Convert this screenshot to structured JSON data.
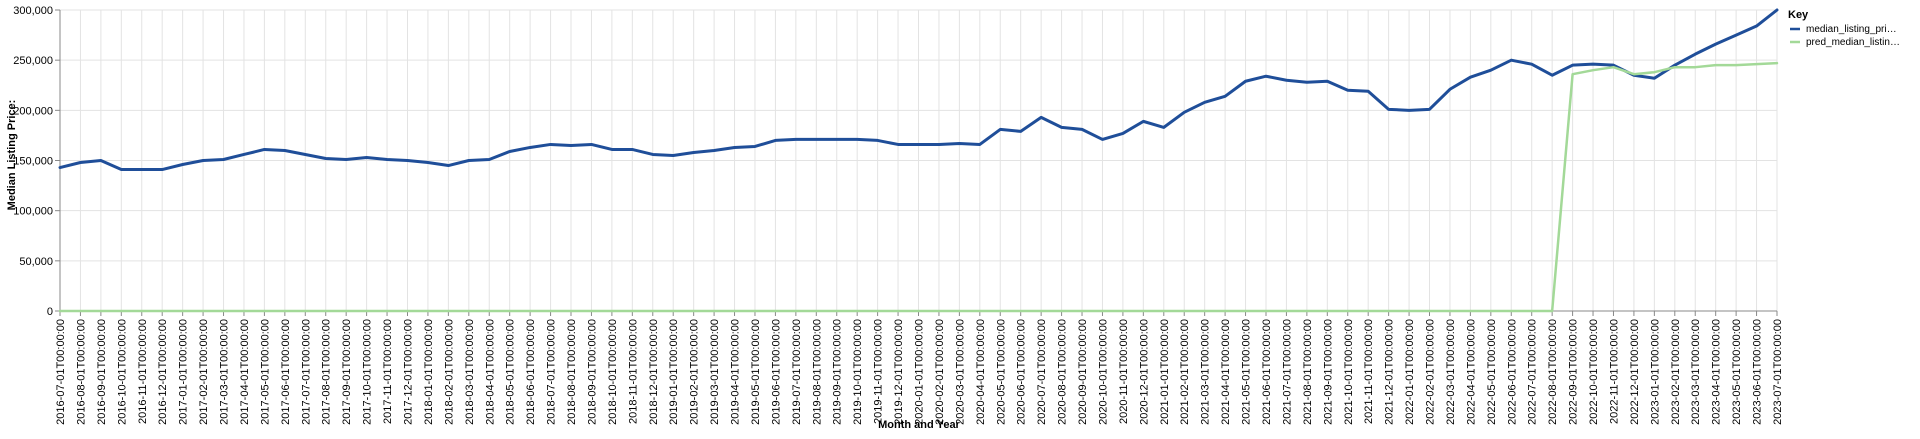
{
  "chart_data": {
    "type": "line",
    "xlabel": "Month and Year",
    "ylabel": "Median Listing Price:",
    "ylim": [
      0,
      300000
    ],
    "y_ticks": [
      "0",
      "50,000",
      "100,000",
      "150,000",
      "200,000",
      "250,000",
      "300,000"
    ],
    "grid": true,
    "legend": {
      "title": "Key",
      "placement": "right"
    },
    "x": [
      "2016-07-01T00:00:00",
      "2016-08-01T00:00:00",
      "2016-09-01T00:00:00",
      "2016-10-01T00:00:00",
      "2016-11-01T00:00:00",
      "2016-12-01T00:00:00",
      "2017-01-01T00:00:00",
      "2017-02-01T00:00:00",
      "2017-03-01T00:00:00",
      "2017-04-01T00:00:00",
      "2017-05-01T00:00:00",
      "2017-06-01T00:00:00",
      "2017-07-01T00:00:00",
      "2017-08-01T00:00:00",
      "2017-09-01T00:00:00",
      "2017-10-01T00:00:00",
      "2017-11-01T00:00:00",
      "2017-12-01T00:00:00",
      "2018-01-01T00:00:00",
      "2018-02-01T00:00:00",
      "2018-03-01T00:00:00",
      "2018-04-01T00:00:00",
      "2018-05-01T00:00:00",
      "2018-06-01T00:00:00",
      "2018-07-01T00:00:00",
      "2018-08-01T00:00:00",
      "2018-09-01T00:00:00",
      "2018-10-01T00:00:00",
      "2018-11-01T00:00:00",
      "2018-12-01T00:00:00",
      "2019-01-01T00:00:00",
      "2019-02-01T00:00:00",
      "2019-03-01T00:00:00",
      "2019-04-01T00:00:00",
      "2019-05-01T00:00:00",
      "2019-06-01T00:00:00",
      "2019-07-01T00:00:00",
      "2019-08-01T00:00:00",
      "2019-09-01T00:00:00",
      "2019-10-01T00:00:00",
      "2019-11-01T00:00:00",
      "2019-12-01T00:00:00",
      "2020-01-01T00:00:00",
      "2020-02-01T00:00:00",
      "2020-03-01T00:00:00",
      "2020-04-01T00:00:00",
      "2020-05-01T00:00:00",
      "2020-06-01T00:00:00",
      "2020-07-01T00:00:00",
      "2020-08-01T00:00:00",
      "2020-09-01T00:00:00",
      "2020-10-01T00:00:00",
      "2020-11-01T00:00:00",
      "2020-12-01T00:00:00",
      "2021-01-01T00:00:00",
      "2021-02-01T00:00:00",
      "2021-03-01T00:00:00",
      "2021-04-01T00:00:00",
      "2021-05-01T00:00:00",
      "2021-06-01T00:00:00",
      "2021-07-01T00:00:00",
      "2021-08-01T00:00:00",
      "2021-09-01T00:00:00",
      "2021-10-01T00:00:00",
      "2021-11-01T00:00:00",
      "2021-12-01T00:00:00",
      "2022-01-01T00:00:00",
      "2022-02-01T00:00:00",
      "2022-03-01T00:00:00",
      "2022-04-01T00:00:00",
      "2022-05-01T00:00:00",
      "2022-06-01T00:00:00",
      "2022-07-01T00:00:00",
      "2022-08-01T00:00:00",
      "2022-09-01T00:00:00",
      "2022-10-01T00:00:00",
      "2022-11-01T00:00:00",
      "2022-12-01T00:00:00",
      "2023-01-01T00:00:00",
      "2023-02-01T00:00:00",
      "2023-03-01T00:00:00",
      "2023-04-01T00:00:00",
      "2023-05-01T00:00:00",
      "2023-06-01T00:00:00",
      "2023-07-01T00:00:00"
    ],
    "series": [
      {
        "name": "median_listing_pri…",
        "color": "#1f4e99",
        "values": [
          143000,
          148000,
          150000,
          141000,
          141000,
          141000,
          146000,
          150000,
          151000,
          156000,
          161000,
          160000,
          156000,
          152000,
          151000,
          153000,
          151000,
          150000,
          148000,
          145000,
          150000,
          151000,
          159000,
          163000,
          166000,
          165000,
          166000,
          161000,
          161000,
          156000,
          155000,
          158000,
          160000,
          163000,
          164000,
          170000,
          171000,
          171000,
          171000,
          171000,
          170000,
          166000,
          166000,
          166000,
          167000,
          166000,
          181000,
          179000,
          193000,
          183000,
          181000,
          171000,
          177000,
          189000,
          183000,
          198000,
          208000,
          214000,
          229000,
          234000,
          230000,
          228000,
          229000,
          220000,
          219000,
          201000,
          200000,
          201000,
          221000,
          233000,
          240000,
          250000,
          246000,
          235000,
          245000,
          246000,
          245000,
          235000,
          232000,
          245000,
          256000,
          266000,
          275000,
          284000,
          300000
        ]
      },
      {
        "name": "pred_median_listin…",
        "color": "#a3d998",
        "values": [
          0,
          0,
          0,
          0,
          0,
          0,
          0,
          0,
          0,
          0,
          0,
          0,
          0,
          0,
          0,
          0,
          0,
          0,
          0,
          0,
          0,
          0,
          0,
          0,
          0,
          0,
          0,
          0,
          0,
          0,
          0,
          0,
          0,
          0,
          0,
          0,
          0,
          0,
          0,
          0,
          0,
          0,
          0,
          0,
          0,
          0,
          0,
          0,
          0,
          0,
          0,
          0,
          0,
          0,
          0,
          0,
          0,
          0,
          0,
          0,
          0,
          0,
          0,
          0,
          0,
          0,
          0,
          0,
          0,
          0,
          0,
          0,
          0,
          0,
          236000,
          240000,
          243000,
          236000,
          238000,
          243000,
          243000,
          245000,
          245000,
          246000,
          247000
        ]
      }
    ]
  }
}
